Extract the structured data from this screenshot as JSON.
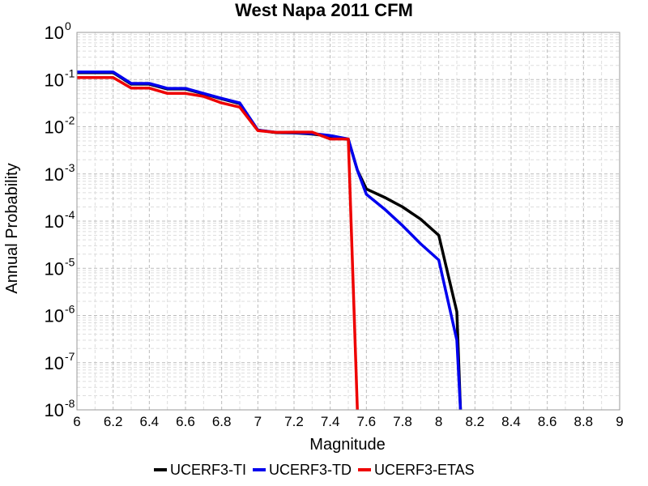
{
  "chart_data": {
    "type": "line",
    "title": "West Napa 2011 CFM",
    "xlabel": "Magnitude",
    "ylabel": "Annual Probability",
    "xlim": [
      6,
      9
    ],
    "ylim": [
      1e-08,
      1
    ],
    "yscale": "log",
    "grid": true,
    "legend_position": "bottom",
    "xticks": [
      "6",
      "6.2",
      "6.4",
      "6.6",
      "6.8",
      "7",
      "7.2",
      "7.4",
      "7.6",
      "7.8",
      "8",
      "8.2",
      "8.4",
      "8.6",
      "8.8",
      "9"
    ],
    "yticks": [
      {
        "base": "10",
        "exp": "0"
      },
      {
        "base": "10",
        "exp": "-1"
      },
      {
        "base": "10",
        "exp": "-2"
      },
      {
        "base": "10",
        "exp": "-3"
      },
      {
        "base": "10",
        "exp": "-4"
      },
      {
        "base": "10",
        "exp": "-5"
      },
      {
        "base": "10",
        "exp": "-6"
      },
      {
        "base": "10",
        "exp": "-7"
      },
      {
        "base": "10",
        "exp": "-8"
      }
    ],
    "series": [
      {
        "name": "UCERF3-TI",
        "color": "#000000",
        "x": [
          6.0,
          6.2,
          6.3,
          6.4,
          6.5,
          6.6,
          6.7,
          6.8,
          6.9,
          7.0,
          7.1,
          7.2,
          7.3,
          7.4,
          7.5,
          7.55,
          7.6,
          7.7,
          7.8,
          7.9,
          8.0,
          8.1,
          8.12
        ],
        "y": [
          0.14,
          0.14,
          0.08,
          0.08,
          0.063,
          0.063,
          0.05,
          0.039,
          0.031,
          0.0085,
          0.0075,
          0.0074,
          0.007,
          0.0063,
          0.0054,
          0.0012,
          0.00048,
          0.00032,
          0.0002,
          0.00011,
          5e-05,
          1.2e-06,
          1e-08
        ]
      },
      {
        "name": "UCERF3-TD",
        "color": "#0000ee",
        "x": [
          6.0,
          6.2,
          6.3,
          6.4,
          6.5,
          6.6,
          6.7,
          6.8,
          6.9,
          7.0,
          7.1,
          7.2,
          7.3,
          7.4,
          7.5,
          7.55,
          7.6,
          7.7,
          7.8,
          7.9,
          8.0,
          8.1,
          8.12
        ],
        "y": [
          0.145,
          0.145,
          0.083,
          0.083,
          0.065,
          0.065,
          0.051,
          0.04,
          0.032,
          0.0085,
          0.0076,
          0.0075,
          0.0072,
          0.0065,
          0.0055,
          0.0012,
          0.00037,
          0.00018,
          8e-05,
          3.3e-05,
          1.5e-05,
          3e-07,
          1e-08
        ]
      },
      {
        "name": "UCERF3-ETAS",
        "color": "#ee0000",
        "x": [
          6.0,
          6.2,
          6.3,
          6.4,
          6.5,
          6.6,
          6.7,
          6.8,
          6.9,
          7.0,
          7.1,
          7.2,
          7.3,
          7.4,
          7.5,
          7.55
        ],
        "y": [
          0.11,
          0.11,
          0.066,
          0.066,
          0.051,
          0.051,
          0.044,
          0.032,
          0.026,
          0.0083,
          0.0076,
          0.0077,
          0.0077,
          0.0055,
          0.0055,
          1e-08
        ]
      }
    ]
  }
}
